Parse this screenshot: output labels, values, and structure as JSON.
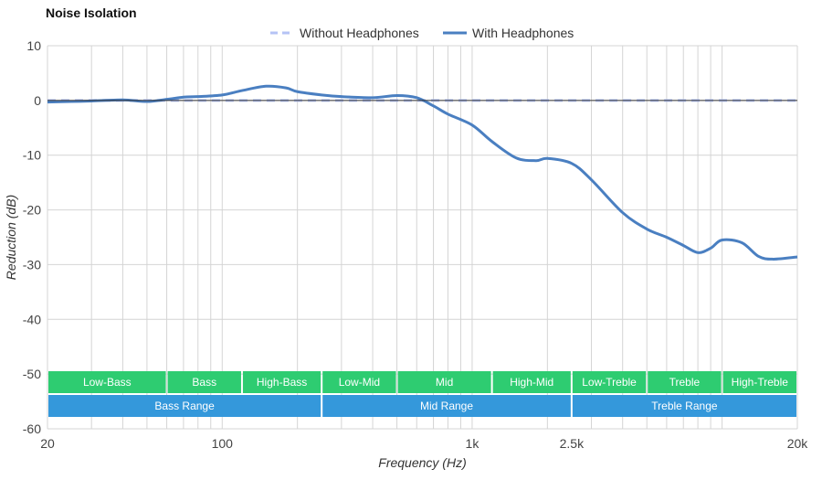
{
  "chart_data": {
    "type": "line",
    "title": "Noise Isolation",
    "xlabel": "Frequency (Hz)",
    "ylabel": "Reduction (dB)",
    "xscale": "log",
    "xlim": [
      20,
      20000
    ],
    "ylim": [
      -60,
      10
    ],
    "grid": true,
    "legend": "top-center",
    "x_ticks": [
      {
        "value": 20,
        "label": "20"
      },
      {
        "value": 100,
        "label": "100"
      },
      {
        "value": 1000,
        "label": "1k"
      },
      {
        "value": 2500,
        "label": "2.5k"
      },
      {
        "value": 20000,
        "label": "20k"
      }
    ],
    "y_ticks": [
      10,
      0,
      -10,
      -20,
      -30,
      -40,
      -50,
      -60
    ],
    "series": [
      {
        "name": "Without Headphones",
        "style": "dashed",
        "color": "#b5c3f5",
        "x": [
          20,
          20000
        ],
        "y": [
          0,
          0
        ]
      },
      {
        "name": "With Headphones",
        "style": "solid",
        "color": "#4a7fc1",
        "x": [
          20,
          25,
          30,
          40,
          50,
          60,
          70,
          80,
          100,
          120,
          150,
          180,
          200,
          250,
          300,
          400,
          500,
          600,
          700,
          800,
          1000,
          1200,
          1500,
          1800,
          2000,
          2500,
          3000,
          4000,
          5000,
          6000,
          7000,
          8000,
          9000,
          10000,
          12000,
          14000,
          16000,
          20000
        ],
        "y": [
          -0.3,
          -0.2,
          -0.1,
          0.1,
          -0.2,
          0.2,
          0.6,
          0.7,
          1.0,
          1.8,
          2.6,
          2.3,
          1.6,
          1.0,
          0.7,
          0.5,
          0.9,
          0.5,
          -1.0,
          -2.5,
          -4.5,
          -7.5,
          -10.5,
          -11.0,
          -10.6,
          -11.5,
          -14.5,
          -20.5,
          -23.5,
          -25.0,
          -26.5,
          -27.8,
          -27.0,
          -25.5,
          -26.0,
          -28.5,
          -29.0,
          -28.6
        ]
      }
    ],
    "range_bands": {
      "rows": [
        [
          {
            "label": "Low-Bass",
            "from": 20,
            "to": 60
          },
          {
            "label": "Bass",
            "from": 60,
            "to": 120
          },
          {
            "label": "High-Bass",
            "from": 120,
            "to": 250
          },
          {
            "label": "Low-Mid",
            "from": 250,
            "to": 500
          },
          {
            "label": "Mid",
            "from": 500,
            "to": 1200
          },
          {
            "label": "High-Mid",
            "from": 1200,
            "to": 2500
          },
          {
            "label": "Low-Treble",
            "from": 2500,
            "to": 5000
          },
          {
            "label": "Treble",
            "from": 5000,
            "to": 10000
          },
          {
            "label": "High-Treble",
            "from": 10000,
            "to": 20000
          }
        ],
        [
          {
            "label": "Bass Range",
            "from": 20,
            "to": 250
          },
          {
            "label": "Mid Range",
            "from": 250,
            "to": 2500
          },
          {
            "label": "Treble Range",
            "from": 2500,
            "to": 20000
          }
        ]
      ],
      "colors": [
        "#2ecc71",
        "#3498db"
      ]
    }
  }
}
